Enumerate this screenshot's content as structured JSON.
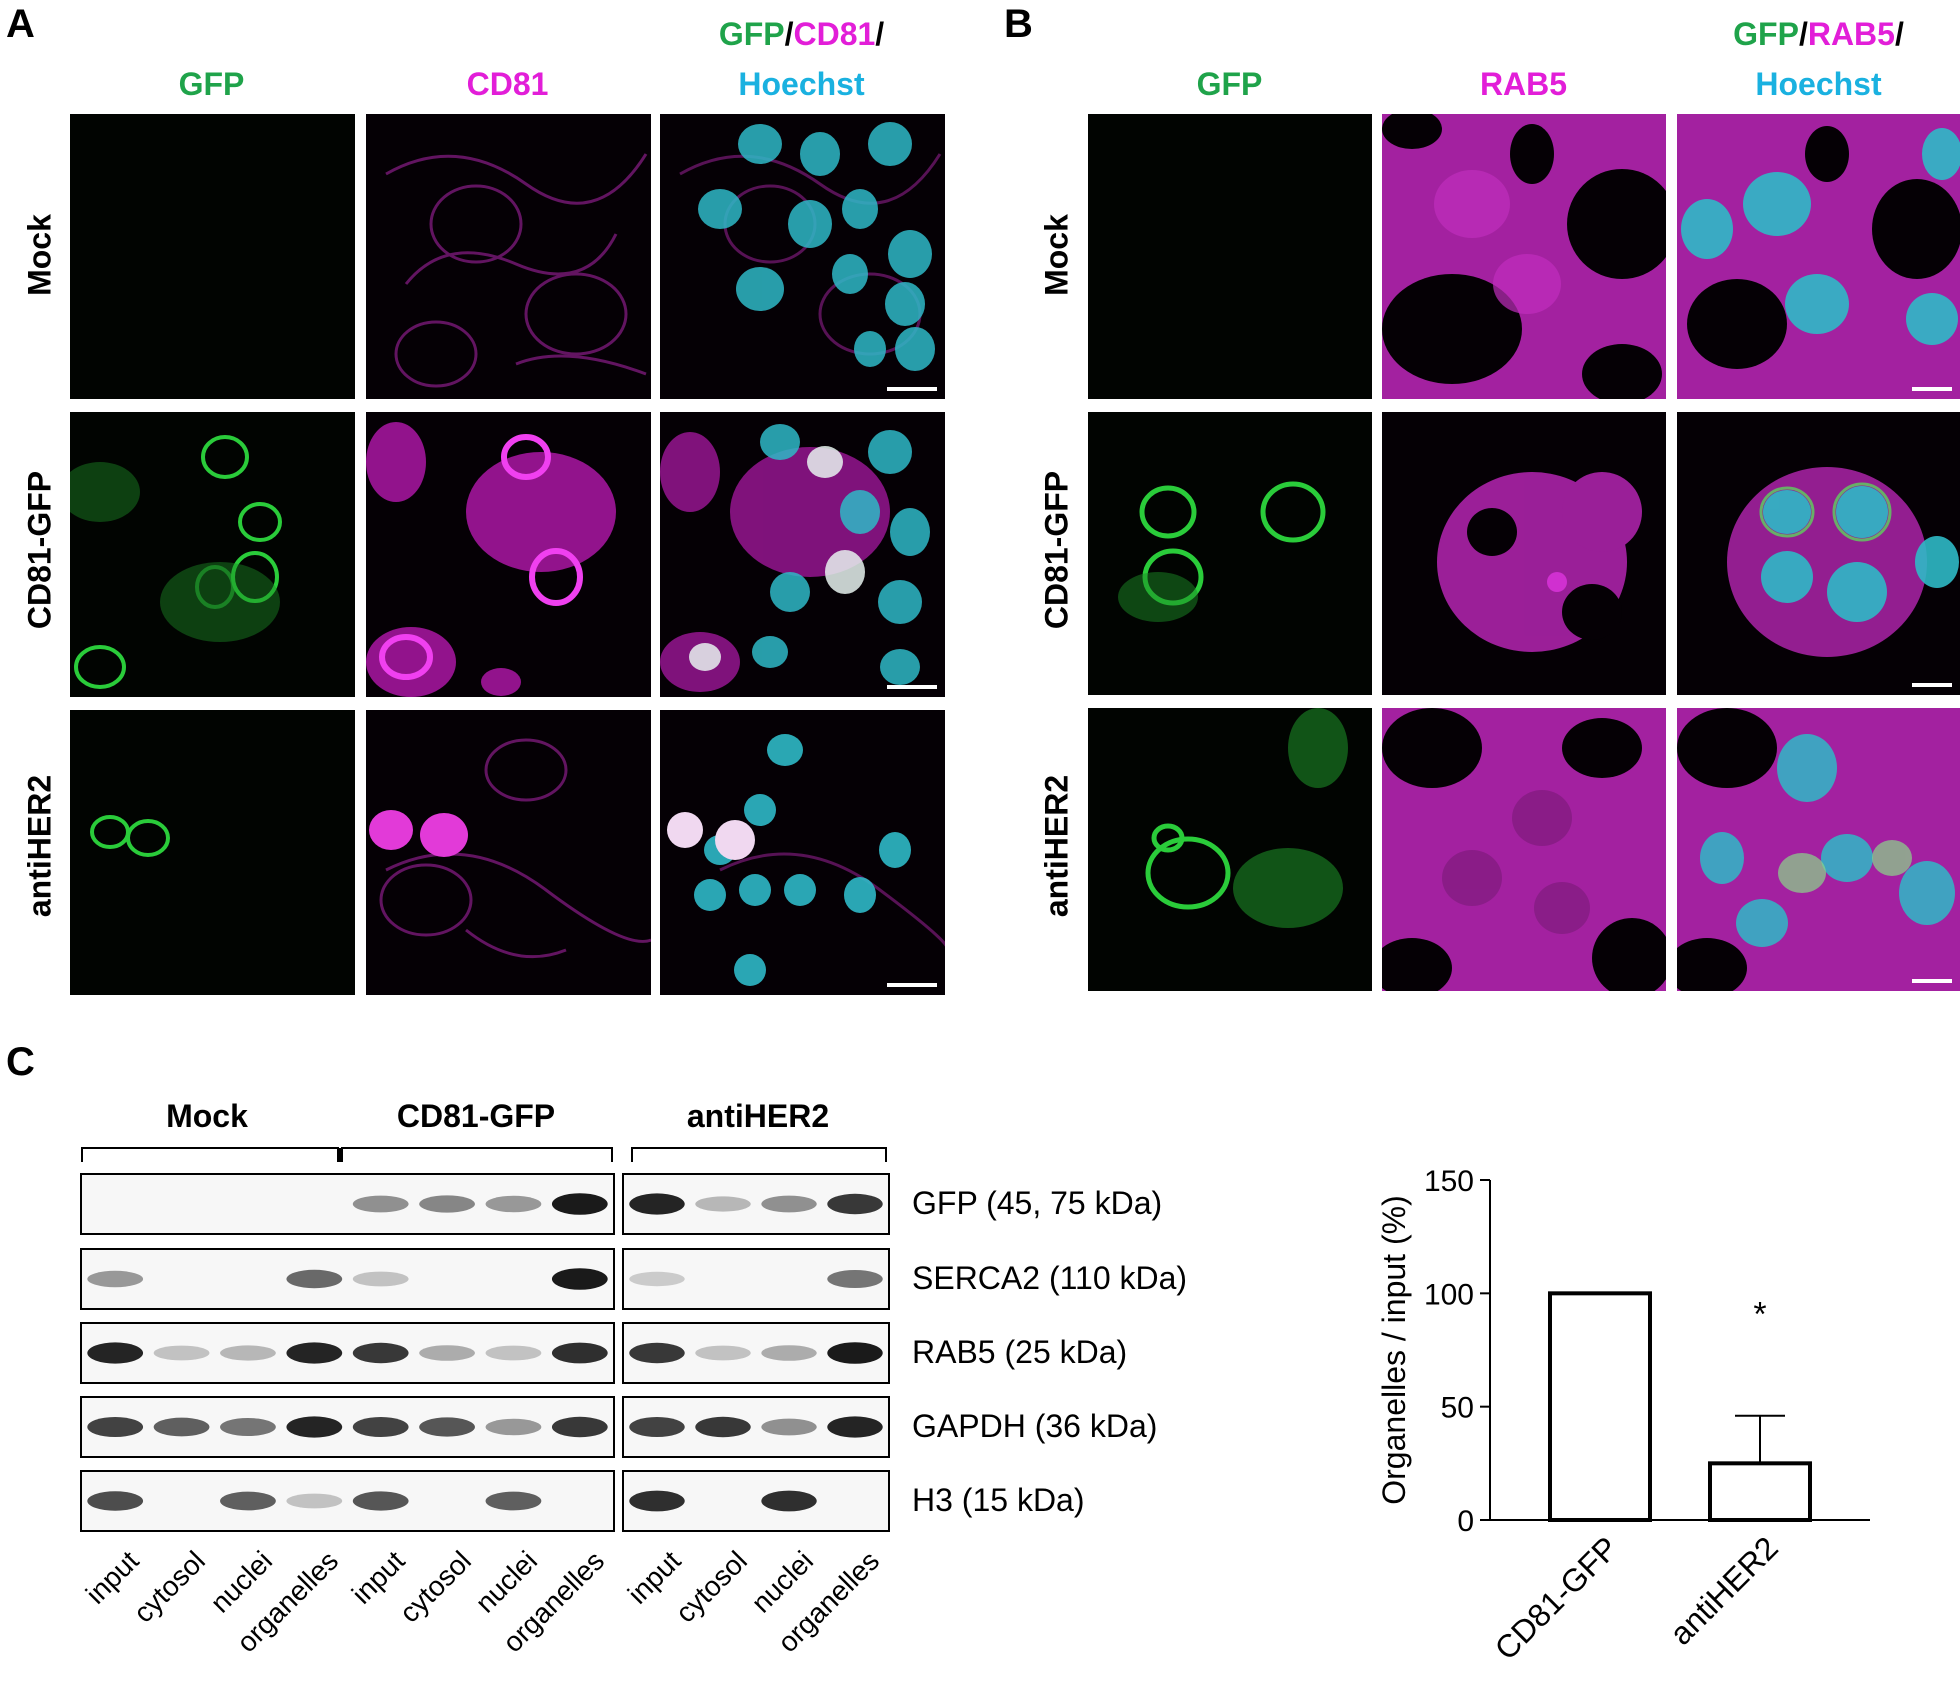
{
  "colors": {
    "gfp": "#1fa34a",
    "magenta": "#e21ed8",
    "hoechst": "#1ab1e0",
    "cyan_nuclei": "#2fb9c7",
    "black": "#000000"
  },
  "panel_a": {
    "letter": "A",
    "col_gfp": "GFP",
    "col_cd81": "CD81",
    "merge_gfp": "GFP",
    "merge_sep1": "/",
    "merge_cd81": "CD81",
    "merge_sep2": "/",
    "merge_hoechst": "Hoechst",
    "rows": [
      "Mock",
      "CD81-GFP",
      "antiHER2"
    ]
  },
  "panel_b": {
    "letter": "B",
    "col_gfp": "GFP",
    "col_rab5": "RAB5",
    "merge_gfp": "GFP",
    "merge_sep1": "/",
    "merge_rab5": "RAB5",
    "merge_sep2": "/",
    "merge_hoechst": "Hoechst",
    "rows": [
      "Mock",
      "CD81-GFP",
      "antiHER2"
    ]
  },
  "panel_c": {
    "letter": "C",
    "groups": [
      "Mock",
      "CD81-GFP",
      "antiHER2"
    ],
    "blot_labels": [
      "GFP (45, 75 kDa)",
      "SERCA2 (110 kDa)",
      "RAB5 (25 kDa)",
      "GAPDH (36 kDa)",
      "H3 (15 kDa)"
    ],
    "lanes": [
      "input",
      "cytosol",
      "nuclei",
      "organelles",
      "input",
      "cytosol",
      "nuclei",
      "organelles",
      "input",
      "cytosol",
      "nuclei",
      "organelles"
    ],
    "band_intensity": {
      "GFP": [
        0,
        0,
        0,
        0,
        0.35,
        0.4,
        0.3,
        0.95,
        0.9,
        0.15,
        0.35,
        0.8
      ],
      "SERCA2": [
        0.3,
        0,
        0,
        0.55,
        0.1,
        0,
        0,
        0.95,
        0.05,
        0,
        0,
        0.5
      ],
      "RAB5": [
        0.9,
        0.1,
        0.15,
        0.9,
        0.8,
        0.2,
        0.1,
        0.85,
        0.8,
        0.1,
        0.2,
        0.95
      ],
      "GAPDH": [
        0.75,
        0.6,
        0.5,
        0.9,
        0.75,
        0.65,
        0.3,
        0.8,
        0.75,
        0.8,
        0.35,
        0.9
      ],
      "H3": [
        0.7,
        0,
        0.6,
        0.1,
        0.65,
        0,
        0.6,
        0,
        0.85,
        0,
        0.85,
        0
      ]
    }
  },
  "chart_data": {
    "type": "bar",
    "categories": [
      "CD81-GFP",
      "antiHER2"
    ],
    "values": [
      100,
      25
    ],
    "error": [
      0,
      21
    ],
    "significance": [
      "",
      "*"
    ],
    "ylabel": "Organelles / input (%)",
    "xlabel": "",
    "ylim": [
      0,
      150
    ],
    "yticks": [
      "0",
      "50",
      "100",
      "150"
    ],
    "grid": false
  }
}
